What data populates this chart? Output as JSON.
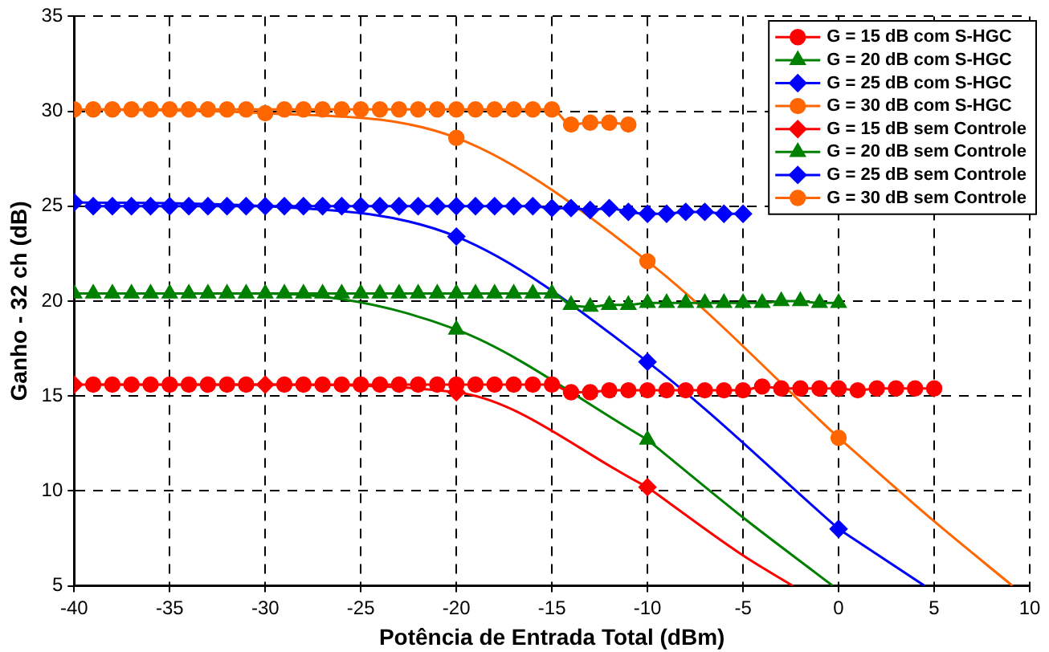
{
  "chart_data": {
    "type": "line",
    "xlabel": "Potência de Entrada Total (dBm)",
    "ylabel": "Ganho - 32 ch (dB)",
    "xlim": [
      -40,
      10
    ],
    "xticks": [
      -40,
      -35,
      -30,
      -25,
      -20,
      -15,
      -10,
      -5,
      0,
      5,
      10
    ],
    "ylim": [
      5,
      35
    ],
    "yticks": [
      5,
      10,
      15,
      20,
      25,
      30,
      35
    ],
    "grid": true,
    "legend": "top right",
    "series": [
      {
        "name": "G = 15 dB com S-HGC",
        "color": "#ff0000",
        "marker": "circle",
        "x": [
          -39,
          -38,
          -37,
          -36,
          -35,
          -34,
          -33,
          -32,
          -31,
          -30,
          -29,
          -28,
          -27,
          -26,
          -25,
          -24,
          -23,
          -22,
          -21,
          -20,
          -19,
          -18,
          -17,
          -16,
          -15,
          -14,
          -13,
          -12,
          -11,
          -10,
          -9,
          -8,
          -7,
          -6,
          -5,
          -4,
          -3,
          -2,
          -1,
          0,
          1,
          2,
          3,
          4,
          5
        ],
        "values": [
          15.6,
          15.6,
          15.6,
          15.6,
          15.6,
          15.6,
          15.6,
          15.6,
          15.6,
          null,
          15.6,
          15.6,
          15.6,
          15.6,
          15.6,
          15.6,
          15.6,
          15.6,
          15.6,
          15.6,
          15.6,
          15.6,
          15.6,
          15.6,
          15.6,
          15.2,
          15.2,
          15.3,
          15.3,
          15.3,
          15.3,
          15.3,
          15.3,
          15.3,
          15.3,
          15.5,
          15.4,
          15.4,
          15.4,
          15.4,
          15.3,
          15.4,
          15.4,
          15.4,
          15.4
        ]
      },
      {
        "name": "G = 20 dB com S-HGC",
        "color": "#008000",
        "marker": "triangle",
        "x": [
          -39,
          -38,
          -37,
          -36,
          -35,
          -34,
          -33,
          -32,
          -31,
          -30,
          -29,
          -28,
          -27,
          -26,
          -25,
          -24,
          -23,
          -22,
          -21,
          -20,
          -19,
          -18,
          -17,
          -16,
          -15,
          -14,
          -13,
          -12,
          -11,
          -10,
          -9,
          -8,
          -7,
          -6,
          -5,
          -4,
          -3,
          -2,
          -1,
          0
        ],
        "values": [
          20.4,
          20.4,
          20.4,
          20.4,
          20.4,
          20.4,
          20.4,
          20.4,
          20.4,
          null,
          20.4,
          20.4,
          20.4,
          20.4,
          20.4,
          20.4,
          20.4,
          20.4,
          20.4,
          20.4,
          20.4,
          20.4,
          20.4,
          20.4,
          20.4,
          19.8,
          19.7,
          19.8,
          19.8,
          19.9,
          19.9,
          19.9,
          19.9,
          19.9,
          19.9,
          19.9,
          20.0,
          20.0,
          19.9,
          19.9
        ]
      },
      {
        "name": "G = 25 dB com S-HGC",
        "color": "#0000ff",
        "marker": "diamond",
        "x": [
          -39,
          -38,
          -37,
          -36,
          -35,
          -34,
          -33,
          -32,
          -31,
          -30,
          -29,
          -28,
          -27,
          -26,
          -25,
          -24,
          -23,
          -22,
          -21,
          -20,
          -19,
          -18,
          -17,
          -16,
          -15,
          -14,
          -13,
          -12,
          -11,
          -10,
          -9,
          -8,
          -7,
          -6,
          -5
        ],
        "values": [
          25.0,
          25.0,
          25.0,
          25.0,
          25.0,
          25.0,
          25.0,
          25.0,
          25.0,
          null,
          25.0,
          25.0,
          25.0,
          25.0,
          25.0,
          25.0,
          25.0,
          25.0,
          25.0,
          25.0,
          25.0,
          25.0,
          25.0,
          25.0,
          24.9,
          24.9,
          24.8,
          24.9,
          24.7,
          24.6,
          24.6,
          24.7,
          24.7,
          24.6,
          24.6
        ]
      },
      {
        "name": "G = 30 dB com S-HGC",
        "color": "#ff6600",
        "marker": "circle",
        "x": [
          -39,
          -38,
          -37,
          -36,
          -35,
          -34,
          -33,
          -32,
          -31,
          -30,
          -29,
          -28,
          -27,
          -26,
          -25,
          -24,
          -23,
          -22,
          -21,
          -20,
          -19,
          -18,
          -17,
          -16,
          -15,
          -14,
          -13,
          -12,
          -11
        ],
        "values": [
          30.1,
          30.1,
          30.1,
          30.1,
          30.1,
          30.1,
          30.1,
          30.1,
          30.1,
          null,
          30.1,
          30.1,
          30.1,
          30.1,
          30.1,
          30.1,
          30.1,
          30.1,
          30.1,
          30.1,
          30.1,
          30.1,
          30.1,
          30.1,
          30.1,
          29.3,
          29.4,
          29.4,
          29.3
        ]
      },
      {
        "name": "G = 15 dB sem Controle",
        "color": "#ff0000",
        "marker": "diamond",
        "x": [
          -40,
          -30,
          -20,
          -10
        ],
        "values": [
          15.6,
          15.6,
          15.2,
          10.2
        ]
      },
      {
        "name": "G = 20 dB sem Controle",
        "color": "#008000",
        "marker": "triangle",
        "x": [
          -40,
          -30,
          -20,
          -10
        ],
        "values": [
          20.4,
          20.4,
          18.5,
          12.7
        ]
      },
      {
        "name": "G = 25 dB sem Controle",
        "color": "#0000ff",
        "marker": "diamond",
        "x": [
          -40,
          -30,
          -20,
          -10,
          0
        ],
        "values": [
          25.2,
          25.0,
          23.4,
          16.8,
          8.0
        ]
      },
      {
        "name": "G = 30 dB sem Controle",
        "color": "#ff6600",
        "marker": "circle",
        "x": [
          -40,
          -30,
          -20,
          -10,
          0
        ],
        "values": [
          30.1,
          29.9,
          28.6,
          22.1,
          12.8
        ]
      },
      {
        "color": "#ff0000",
        "marker": "none",
        "x": [
          -10,
          -5,
          -2.4
        ],
        "values": [
          10.2,
          6.6,
          5
        ]
      },
      {
        "color": "#008000",
        "marker": "none",
        "x": [
          -10,
          -5,
          -0.3
        ],
        "values": [
          12.7,
          8.6,
          5
        ]
      },
      {
        "color": "#0000ff",
        "marker": "none",
        "x": [
          0,
          4.5
        ],
        "values": [
          8.0,
          5
        ]
      },
      {
        "color": "#ff6600",
        "marker": "none",
        "x": [
          0,
          5,
          9.1
        ],
        "values": [
          12.8,
          8.4,
          5
        ]
      }
    ]
  }
}
